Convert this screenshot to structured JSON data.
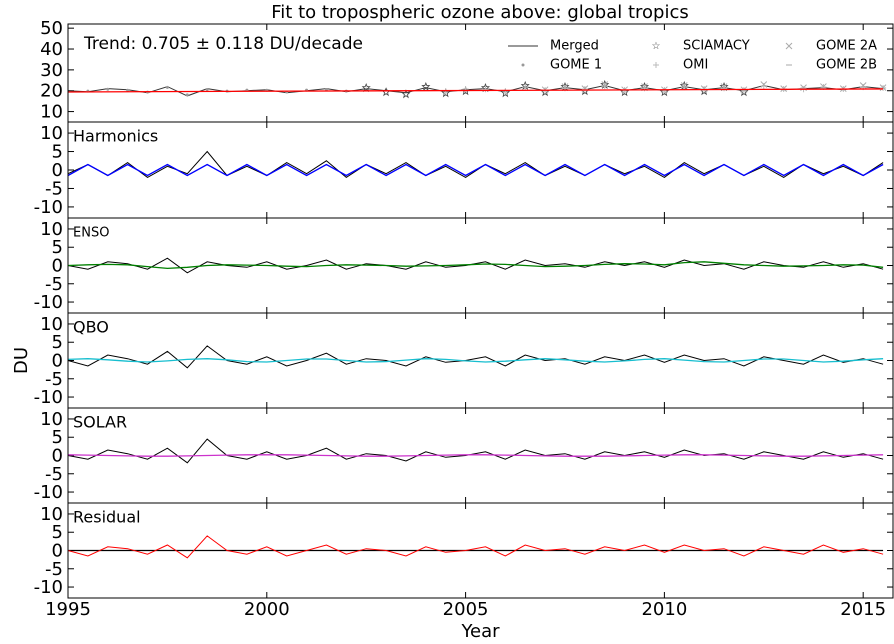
{
  "chart_data": [
    {
      "type": "line",
      "title": "Fit to tropospheric ozone above: global tropics",
      "annotation": "Trend: 0.705 ± 0.118 DU/decade",
      "x": [
        1995,
        1995.5,
        1996,
        1996.5,
        1997,
        1997.5,
        1998,
        1998.5,
        1999,
        1999.5,
        2000,
        2000.5,
        2001,
        2001.5,
        2002,
        2002.5,
        2003,
        2003.5,
        2004,
        2004.5,
        2005,
        2005.5,
        2006,
        2006.5,
        2007,
        2007.5,
        2008,
        2008.5,
        2009,
        2009.5,
        2010,
        2010.5,
        2011,
        2011.5,
        2012,
        2012.5,
        2013,
        2013.5,
        2014,
        2014.5,
        2015,
        2015.5
      ],
      "xlim": [
        1995,
        2015.75
      ],
      "ylim": [
        5,
        52
      ],
      "yticks": [
        10,
        20,
        30,
        40,
        50
      ],
      "legend": "upper right",
      "series": [
        {
          "name": "Merged",
          "color": "#333333",
          "marker": "line",
          "values": [
            20,
            19.5,
            21,
            20.5,
            19,
            22,
            17.5,
            21,
            19.5,
            20,
            20.5,
            19,
            20,
            21,
            19.5,
            21,
            20,
            19,
            21.5,
            19.5,
            20.5,
            21,
            19.5,
            22,
            20,
            21.5,
            20.5,
            22.5,
            20,
            21.5,
            20,
            22,
            20.5,
            21.5,
            20,
            22.5,
            20.5,
            21,
            21.5,
            20.5,
            22,
            21
          ]
        },
        {
          "name": "GOME 1",
          "color": "#999999",
          "marker": "dot",
          "values": [
            null,
            19.8,
            20.7,
            20.2,
            19.3,
            21.6,
            18,
            20.6,
            19.8,
            20.3,
            20.2,
            19.4,
            20.3,
            20.6,
            19.8,
            20.7,
            20.3,
            null,
            null,
            null,
            null,
            null,
            null,
            null,
            null,
            null,
            null,
            null,
            null,
            null,
            null,
            null,
            null,
            null,
            null,
            null,
            null,
            null,
            null,
            null,
            null,
            null
          ]
        },
        {
          "name": "SCIAMACY",
          "color": "#444444",
          "marker": "star",
          "values": [
            null,
            null,
            null,
            null,
            null,
            null,
            null,
            null,
            null,
            null,
            null,
            null,
            null,
            null,
            null,
            21.5,
            19.5,
            18.5,
            22,
            19,
            20,
            21.5,
            19,
            22.5,
            19.5,
            22,
            20,
            23,
            19.5,
            22,
            19.5,
            22.5,
            20,
            22,
            19.5,
            null,
            null,
            null,
            null,
            null,
            null,
            null
          ]
        },
        {
          "name": "OMI",
          "color": "#bbbbbb",
          "marker": "plus",
          "values": [
            null,
            null,
            null,
            null,
            null,
            null,
            null,
            null,
            null,
            null,
            null,
            null,
            null,
            null,
            null,
            null,
            null,
            null,
            null,
            19.8,
            20.8,
            20.7,
            19.8,
            21.7,
            20.3,
            21.2,
            20.8,
            22.2,
            20.3,
            21.2,
            20.3,
            21.7,
            20.8,
            21.2,
            20.3,
            22.2,
            20.8,
            20.7,
            21.8,
            20.8,
            21.7,
            21.3
          ]
        },
        {
          "name": "GOME 2A",
          "color": "#aaaaaa",
          "marker": "x",
          "values": [
            null,
            null,
            null,
            null,
            null,
            null,
            null,
            null,
            null,
            null,
            null,
            null,
            null,
            null,
            null,
            null,
            null,
            null,
            null,
            null,
            null,
            null,
            null,
            null,
            20.5,
            22,
            21,
            23,
            20.5,
            22,
            20.5,
            22.5,
            21,
            22,
            20.5,
            23,
            21,
            21.5,
            22,
            21,
            22.5,
            21.5
          ]
        },
        {
          "name": "GOME 2B",
          "color": "#aaaaaa",
          "marker": "dash",
          "values": [
            null,
            null,
            null,
            null,
            null,
            null,
            null,
            null,
            null,
            null,
            null,
            null,
            null,
            null,
            null,
            null,
            null,
            null,
            null,
            null,
            null,
            null,
            null,
            null,
            null,
            null,
            null,
            null,
            null,
            null,
            null,
            null,
            null,
            null,
            null,
            null,
            20.8,
            21.3,
            21.2,
            20.8,
            21.7,
            21.3
          ]
        }
      ],
      "fit_x": [
        1995,
        2015.5
      ],
      "fit_values": [
        19.4,
        20.85
      ],
      "fit_color": "#ff0000"
    },
    {
      "type": "line",
      "title": "Harmonics",
      "x": [
        1995,
        1995.5,
        1996,
        1996.5,
        1997,
        1997.5,
        1998,
        1998.5,
        1999,
        1999.5,
        2000,
        2000.5,
        2001,
        2001.5,
        2002,
        2002.5,
        2003,
        2003.5,
        2004,
        2004.5,
        2005,
        2005.5,
        2006,
        2006.5,
        2007,
        2007.5,
        2008,
        2008.5,
        2009,
        2009.5,
        2010,
        2010.5,
        2011,
        2011.5,
        2012,
        2012.5,
        2013,
        2013.5,
        2014,
        2014.5,
        2015,
        2015.5
      ],
      "xlim": [
        1995,
        2015.75
      ],
      "ylim": [
        -13,
        13
      ],
      "yticks": [
        -10,
        -5,
        0,
        5,
        10
      ],
      "color": "#000000",
      "values": [
        -1,
        1.5,
        -1.5,
        2,
        -2,
        1,
        -1,
        5,
        -1.5,
        1,
        -1.5,
        2,
        -1,
        2.5,
        -2,
        1.5,
        -1,
        2,
        -1.5,
        1,
        -2,
        1.5,
        -1,
        2,
        -1.5,
        1,
        -1.5,
        1.5,
        -1,
        1,
        -2,
        2,
        -1,
        1.5,
        -1.5,
        1,
        -2,
        1.5,
        -1,
        1,
        -1.5,
        2
      ],
      "fit_color": "#0000ff",
      "fit_values": [
        -1.5,
        1.5,
        -1.5,
        1.5,
        -1.5,
        1.5,
        -1.5,
        1.5,
        -1.5,
        1.5,
        -1.5,
        1.5,
        -1.5,
        1.5,
        -1.5,
        1.5,
        -1.5,
        1.5,
        -1.5,
        1.5,
        -1.5,
        1.5,
        -1.5,
        1.5,
        -1.5,
        1.5,
        -1.5,
        1.5,
        -1.5,
        1.5,
        -1.5,
        1.5,
        -1.5,
        1.5,
        -1.5,
        1.5,
        -1.5,
        1.5,
        -1.5,
        1.5,
        -1.5,
        1.5
      ]
    },
    {
      "type": "line",
      "title": "ENSO",
      "x": [
        1995,
        1995.5,
        1996,
        1996.5,
        1997,
        1997.5,
        1998,
        1998.5,
        1999,
        1999.5,
        2000,
        2000.5,
        2001,
        2001.5,
        2002,
        2002.5,
        2003,
        2003.5,
        2004,
        2004.5,
        2005,
        2005.5,
        2006,
        2006.5,
        2007,
        2007.5,
        2008,
        2008.5,
        2009,
        2009.5,
        2010,
        2010.5,
        2011,
        2011.5,
        2012,
        2012.5,
        2013,
        2013.5,
        2014,
        2014.5,
        2015,
        2015.5
      ],
      "xlim": [
        1995,
        2015.75
      ],
      "ylim": [
        -13,
        13
      ],
      "yticks": [
        -10,
        -5,
        0,
        5,
        10
      ],
      "color": "#000000",
      "values": [
        0,
        -1,
        1,
        0.5,
        -1,
        2,
        -2,
        1,
        0,
        -0.5,
        1,
        -1,
        0,
        1.5,
        -1,
        0.5,
        0,
        -1,
        1,
        -0.5,
        0,
        1,
        -1,
        1.5,
        0,
        0.5,
        -0.5,
        1,
        0,
        1,
        -0.5,
        1.5,
        0,
        0.5,
        -1,
        1,
        0,
        -0.5,
        1,
        -0.5,
        0.5,
        -1
      ],
      "fit_color": "#008000",
      "fit_values": [
        0,
        0.2,
        0.3,
        0.2,
        -0.3,
        -0.8,
        -0.5,
        0,
        0.2,
        0.1,
        0,
        -0.2,
        -0.3,
        0,
        0.2,
        0.1,
        0,
        -0.2,
        -0.1,
        0,
        0.2,
        0.4,
        0.3,
        0,
        -0.3,
        -0.2,
        0,
        0.3,
        0.5,
        0.4,
        0.2,
        0.8,
        1,
        0.6,
        0.2,
        0,
        -0.2,
        -0.1,
        0,
        0.2,
        0.1,
        -0.5
      ]
    },
    {
      "type": "line",
      "title": "QBO",
      "ylabel": "DU",
      "x": [
        1995,
        1995.5,
        1996,
        1996.5,
        1997,
        1997.5,
        1998,
        1998.5,
        1999,
        1999.5,
        2000,
        2000.5,
        2001,
        2001.5,
        2002,
        2002.5,
        2003,
        2003.5,
        2004,
        2004.5,
        2005,
        2005.5,
        2006,
        2006.5,
        2007,
        2007.5,
        2008,
        2008.5,
        2009,
        2009.5,
        2010,
        2010.5,
        2011,
        2011.5,
        2012,
        2012.5,
        2013,
        2013.5,
        2014,
        2014.5,
        2015,
        2015.5
      ],
      "xlim": [
        1995,
        2015.75
      ],
      "ylim": [
        -13,
        13
      ],
      "yticks": [
        -10,
        -5,
        0,
        5,
        10
      ],
      "color": "#000000",
      "values": [
        0,
        -1.5,
        1.5,
        0.5,
        -1,
        2.5,
        -2,
        4,
        0,
        -1,
        1,
        -1.5,
        0,
        2,
        -1,
        0.5,
        0,
        -1.5,
        1,
        -0.5,
        0,
        1,
        -1.5,
        1.5,
        0,
        0.5,
        -1,
        1,
        0,
        1.5,
        -0.5,
        1.5,
        0,
        0.5,
        -1.5,
        1,
        0,
        -1,
        1.5,
        -0.5,
        0.5,
        -1
      ],
      "fit_color": "#17becf",
      "fit_values": [
        0.3,
        0.5,
        0.2,
        -0.2,
        -0.4,
        -0.1,
        0.3,
        0.5,
        0.2,
        -0.3,
        -0.4,
        0,
        0.4,
        0.4,
        0,
        -0.4,
        -0.3,
        0.1,
        0.5,
        0.3,
        -0.1,
        -0.4,
        -0.2,
        0.2,
        0.5,
        0.2,
        -0.2,
        -0.4,
        -0.1,
        0.3,
        0.5,
        0.1,
        -0.3,
        -0.4,
        0,
        0.4,
        0.4,
        0,
        -0.4,
        -0.2,
        0.2,
        0.5
      ]
    },
    {
      "type": "line",
      "title": "SOLAR",
      "x": [
        1995,
        1995.5,
        1996,
        1996.5,
        1997,
        1997.5,
        1998,
        1998.5,
        1999,
        1999.5,
        2000,
        2000.5,
        2001,
        2001.5,
        2002,
        2002.5,
        2003,
        2003.5,
        2004,
        2004.5,
        2005,
        2005.5,
        2006,
        2006.5,
        2007,
        2007.5,
        2008,
        2008.5,
        2009,
        2009.5,
        2010,
        2010.5,
        2011,
        2011.5,
        2012,
        2012.5,
        2013,
        2013.5,
        2014,
        2014.5,
        2015,
        2015.5
      ],
      "xlim": [
        1995,
        2015.75
      ],
      "ylim": [
        -13,
        13
      ],
      "yticks": [
        -10,
        -5,
        0,
        5,
        10
      ],
      "color": "#000000",
      "values": [
        0,
        -1,
        1.5,
        0.5,
        -1,
        2,
        -2,
        4.5,
        0,
        -1,
        1,
        -1,
        0,
        2,
        -1,
        0.5,
        0,
        -1.5,
        1,
        -0.5,
        0,
        1,
        -1,
        1.5,
        0,
        0.5,
        -1,
        1,
        0,
        1,
        -0.5,
        1.5,
        0,
        0.5,
        -1,
        1,
        0,
        -1,
        1,
        -0.5,
        0.5,
        -1
      ],
      "fit_color": "#cc33cc",
      "fit_values": [
        0.2,
        0.1,
        0,
        -0.1,
        -0.2,
        -0.2,
        -0.1,
        0,
        0.1,
        0.2,
        0.2,
        0.2,
        0.1,
        0,
        -0.1,
        -0.2,
        -0.2,
        -0.1,
        0,
        0.1,
        0.2,
        0.2,
        0.1,
        0,
        -0.1,
        -0.2,
        -0.2,
        -0.2,
        -0.1,
        0,
        0.1,
        0.2,
        0.2,
        0.1,
        0,
        -0.1,
        -0.2,
        -0.2,
        -0.1,
        0,
        0.1,
        0.2
      ]
    },
    {
      "type": "line",
      "title": "Residual",
      "xlabel": "Year",
      "x": [
        1995,
        1995.5,
        1996,
        1996.5,
        1997,
        1997.5,
        1998,
        1998.5,
        1999,
        1999.5,
        2000,
        2000.5,
        2001,
        2001.5,
        2002,
        2002.5,
        2003,
        2003.5,
        2004,
        2004.5,
        2005,
        2005.5,
        2006,
        2006.5,
        2007,
        2007.5,
        2008,
        2008.5,
        2009,
        2009.5,
        2010,
        2010.5,
        2011,
        2011.5,
        2012,
        2012.5,
        2013,
        2013.5,
        2014,
        2014.5,
        2015,
        2015.5
      ],
      "xlim": [
        1995,
        2015.75
      ],
      "xticks": [
        1995,
        2000,
        2005,
        2010,
        2015
      ],
      "ylim": [
        -13,
        13
      ],
      "yticks": [
        -10,
        -5,
        0,
        5,
        10
      ],
      "color": "#ff0000",
      "values": [
        0,
        -1.5,
        1,
        0.5,
        -1,
        1.5,
        -2,
        4,
        0,
        -1,
        1,
        -1.5,
        0,
        1.5,
        -1,
        0.5,
        0,
        -1.5,
        1,
        -0.5,
        0,
        1,
        -1.5,
        1.5,
        0,
        0.5,
        -1,
        1,
        0,
        1.5,
        -0.5,
        1.5,
        0,
        0.5,
        -1.5,
        1,
        0,
        -1,
        1.5,
        -0.5,
        0.5,
        -1
      ],
      "fit_color": "#000000",
      "fit_x": [
        1995,
        2015.5
      ],
      "fit_values": [
        0,
        0
      ]
    }
  ]
}
